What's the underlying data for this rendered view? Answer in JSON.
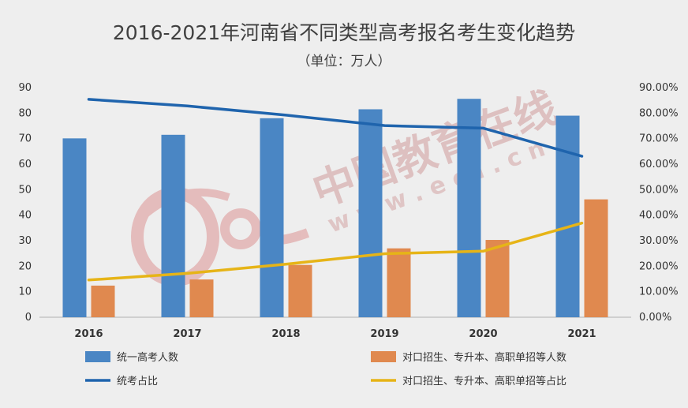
{
  "chart_data": {
    "type": "bar",
    "title": "2016-2021年河南省不同类型高考报名考生变化趋势",
    "subtitle": "（单位：万人）",
    "categories": [
      "2016",
      "2017",
      "2018",
      "2019",
      "2020",
      "2021"
    ],
    "y_left": {
      "min": 0,
      "max": 90,
      "step": 10,
      "ticks": [
        "0",
        "10",
        "20",
        "30",
        "40",
        "50",
        "60",
        "70",
        "80",
        "90"
      ]
    },
    "y_right": {
      "min": 0,
      "max": 90,
      "step": 10,
      "ticks": [
        "0.00%",
        "10.00%",
        "20.00%",
        "30.00%",
        "40.00%",
        "50.00%",
        "60.00%",
        "70.00%",
        "80.00%",
        "90.00%"
      ]
    },
    "series": [
      {
        "name": "统一高考人数",
        "kind": "bar",
        "axis": "left",
        "color": "#4a86c4",
        "values": [
          70.1,
          71.5,
          78.0,
          81.5,
          85.6,
          79.0
        ]
      },
      {
        "name": "对口招生、专升本、高职单招等人数",
        "kind": "bar",
        "axis": "left",
        "color": "#e0894f",
        "values": [
          12.4,
          14.8,
          20.5,
          27.0,
          30.3,
          46.2
        ]
      },
      {
        "name": "统考占比",
        "kind": "line",
        "axis": "right",
        "color": "#1f64ad",
        "values": [
          85.4,
          82.8,
          79.2,
          75.1,
          74.1,
          63.1
        ]
      },
      {
        "name": "对口招生、专升本、高职单招等占比",
        "kind": "line",
        "axis": "right",
        "color": "#e6b417",
        "values": [
          14.6,
          17.2,
          20.8,
          24.9,
          25.9,
          36.9
        ]
      }
    ],
    "grid": false,
    "legend": "bottom"
  },
  "watermark": {
    "text": "中国教育在线",
    "url": "w w w . e o l . c n",
    "logo": "eol"
  }
}
